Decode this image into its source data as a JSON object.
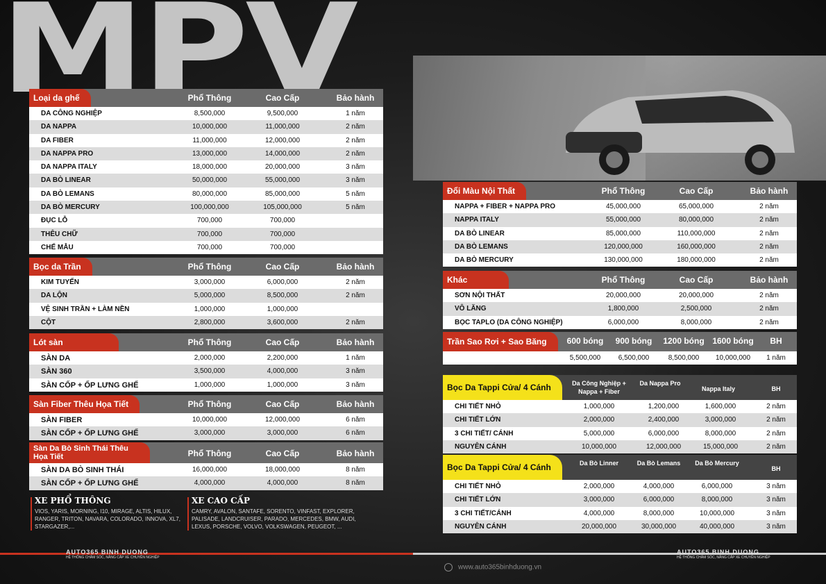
{
  "title": "MPV",
  "loai_da_ghe": {
    "label": "Loại da ghế",
    "cols": [
      "Phổ Thông",
      "Cao Cấp",
      "Bảo hành"
    ],
    "rows": [
      [
        "DA CÔNG NGHIỆP",
        "8,500,000",
        "9,500,000",
        "1 năm"
      ],
      [
        "DA NAPPA",
        "10,000,000",
        "11,000,000",
        "2 năm"
      ],
      [
        "DA FIBER",
        "11,000,000",
        "12,000,000",
        "2 năm"
      ],
      [
        "DA NAPPA PRO",
        "13,000,000",
        "14,000,000",
        "2 năm"
      ],
      [
        "DA NAPPA ITALY",
        "18,000,000",
        "20,000,000",
        "3 năm"
      ],
      [
        "DA BÒ LINEAR",
        "50,000,000",
        "55,000,000",
        "3 năm"
      ],
      [
        "DA BÒ LEMANS",
        "80,000,000",
        "85,000,000",
        "5 năm"
      ],
      [
        "DA BÒ MERCURY",
        "100,000,000",
        "105,000,000",
        "5 năm"
      ],
      [
        "ĐỤC LỖ",
        "700,000",
        "700,000",
        ""
      ],
      [
        "THÊU CHỮ",
        "700,000",
        "700,000",
        ""
      ],
      [
        "CHẾ MẪU",
        "700,000",
        "700,000",
        ""
      ]
    ]
  },
  "boc_da_tran": {
    "label": "Bọc da Trần",
    "cols": [
      "Phổ Thông",
      "Cao Cấp",
      "Bảo hành"
    ],
    "rows": [
      [
        "KIM TUYẾN",
        "3,000,000",
        "6,000,000",
        "2 năm"
      ],
      [
        "DA LỘN",
        "5,000,000",
        "8,500,000",
        "2 năm"
      ],
      [
        "VỆ SINH TRẦN + LÀM NỀN",
        "1,000,000",
        "1,000,000",
        ""
      ],
      [
        "CỘT",
        "2,800,000",
        "3,600,000",
        "2 năm"
      ]
    ]
  },
  "lot_san": {
    "label": "Lót sàn",
    "cols": [
      "Phổ Thông",
      "Cao Cấp",
      "Bảo hành"
    ],
    "rows": [
      [
        "SÀN DA",
        "2,000,000",
        "2,200,000",
        "1 năm"
      ],
      [
        "SÀN 360",
        "3,500,000",
        "4,000,000",
        "3 năm"
      ],
      [
        "SÀN CỐP + ỐP LƯNG GHẾ",
        "1,000,000",
        "1,000,000",
        "3 năm"
      ]
    ]
  },
  "san_fiber": {
    "label": "Sàn Fiber Thêu Họa Tiết",
    "cols": [
      "Phổ Thông",
      "Cao Cấp",
      "Bảo hành"
    ],
    "rows": [
      [
        "SÀN FIBER",
        "10,000,000",
        "12,000,000",
        "6 năm"
      ],
      [
        "SÀN CỐP + ỐP LƯNG GHẾ",
        "3,000,000",
        "3,000,000",
        "6 năm"
      ]
    ]
  },
  "san_da_bo": {
    "label": "Sàn Da Bò Sinh Thái Thêu Họa Tiết",
    "cols": [
      "Phổ Thông",
      "Cao Cấp",
      "Bảo hành"
    ],
    "rows": [
      [
        "SÀN DA BÒ SINH THÁI",
        "16,000,000",
        "18,000,000",
        "8 năm"
      ],
      [
        "SÀN CỐP + ỐP LƯNG GHẾ",
        "4,000,000",
        "4,000,000",
        "8 năm"
      ]
    ]
  },
  "xe_pho_thong": {
    "title": "XE PHỔ THÔNG",
    "text": "VIOS, YARIS, MORNING, I10, MIRAGE, ALTIS, HILUX, RANGER, TRITON, NAVARA, COLORADO, INNOVA, XL7, STARGAZER,..."
  },
  "xe_cao_cap": {
    "title": "XE CAO CẤP",
    "text": "CAMRY, AVALON, SANTAFE, SORENTO, VINFAST, EXPLORER, PALISADE, LANDCRUISER, PARADO, MERCEDES, BMW, AUDI, LEXUS, PORSCHE, VOLVO, VOLKSWAGEN, PEUGEOT, ..."
  },
  "doi_mau": {
    "label": "Đổi Màu Nội Thất",
    "cols": [
      "Phổ Thông",
      "Cao Cấp",
      "Bảo hành"
    ],
    "rows": [
      [
        "NAPPA + FIBER + NAPPA PRO",
        "45,000,000",
        "65,000,000",
        "2 năm"
      ],
      [
        "NAPPA ITALY",
        "55,000,000",
        "80,000,000",
        "2 năm"
      ],
      [
        "DA BÒ LINEAR",
        "85,000,000",
        "110,000,000",
        "2 năm"
      ],
      [
        "DA BÒ LEMANS",
        "120,000,000",
        "160,000,000",
        "2 năm"
      ],
      [
        "DA BÒ MERCURY",
        "130,000,000",
        "180,000,000",
        "2 năm"
      ]
    ]
  },
  "khac": {
    "label": "Khác",
    "cols": [
      "Phổ Thông",
      "Cao Cấp",
      "Bảo hành"
    ],
    "rows": [
      [
        "SƠN NỘI THẤT",
        "20,000,000",
        "20,000,000",
        "2 năm"
      ],
      [
        "VÔ LĂNG",
        "1,800,000",
        "2,500,000",
        "2 năm"
      ],
      [
        "BỌC TAPLO (DA CÔNG NGHIỆP)",
        "6,000,000",
        "8,000,000",
        "2 năm"
      ]
    ]
  },
  "tran_sao": {
    "label": "Trần Sao Rơi + Sao Băng",
    "cols": [
      "600 bóng",
      "900 bóng",
      "1200 bóng",
      "1600 bóng",
      "BH"
    ],
    "row": [
      "5,500,000",
      "6,500,000",
      "8,500,000",
      "10,000,000",
      "1 năm"
    ]
  },
  "tappi1": {
    "label": "Bọc Da Tappi Cửa/ 4 Cánh",
    "cols": [
      "Da Công Nghiệp + Nappa + Fiber",
      "Da Nappa Pro",
      "Nappa Italy",
      "BH"
    ],
    "rows": [
      [
        "CHI TIẾT NHỎ",
        "1,000,000",
        "1,200,000",
        "1,600,000",
        "2 năm"
      ],
      [
        "CHI TIẾT LỚN",
        "2,000,000",
        "2,400,000",
        "3,000,000",
        "2 năm"
      ],
      [
        "3 CHI TIẾT/ CÁNH",
        "5,000,000",
        "6,000,000",
        "8,000,000",
        "2 năm"
      ],
      [
        "NGUYÊN CÁNH",
        "10,000,000",
        "12,000,000",
        "15,000,000",
        "2 năm"
      ]
    ]
  },
  "tappi2": {
    "label": "Bọc Da Tappi Cửa/ 4 Cánh",
    "cols": [
      "Da Bò Linner",
      "Da Bò Lemans",
      "Da Bò Mercury",
      "BH"
    ],
    "rows": [
      [
        "CHI TIẾT NHỎ",
        "2,000,000",
        "4,000,000",
        "6,000,000",
        "3 năm"
      ],
      [
        "CHI TIẾT LỚN",
        "3,000,000",
        "6,000,000",
        "8,000,000",
        "3 năm"
      ],
      [
        "3 CHI TIẾT/CÁNH",
        "4,000,000",
        "8,000,000",
        "10,000,000",
        "3 năm"
      ],
      [
        "NGUYÊN CÁNH",
        "20,000,000",
        "30,000,000",
        "40,000,000",
        "3 năm"
      ]
    ]
  },
  "brand": {
    "name": "AUTO365 BINH DUONG",
    "tagline": "HỆ THỐNG CHĂM SÓC, NÂNG CẤP XE CHUYÊN NGHIỆP"
  },
  "website": "www.auto365binhduong.vn",
  "colors": {
    "accent": "#c8321f",
    "yellow": "#f4e11a",
    "header_gray": "#6b6b6b"
  }
}
